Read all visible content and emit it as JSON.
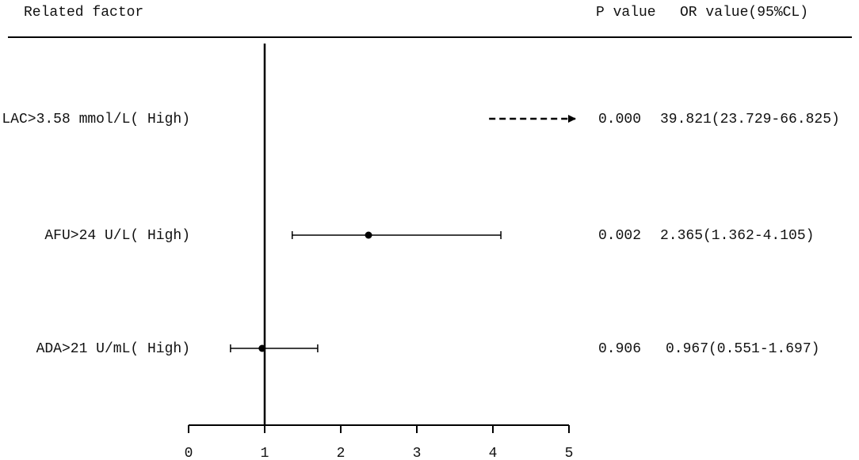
{
  "chart_data": {
    "type": "forest",
    "headers": {
      "factor": "Related factor",
      "p": "P value",
      "or": "OR value(95%CL)"
    },
    "categories": [
      "LAC>3.58 mmol/L( High)",
      "AFU>24 U/L( High)",
      "ADA>21 U/mL( High)"
    ],
    "values": [
      39.821,
      2.365,
      0.967
    ],
    "lower": [
      23.729,
      1.362,
      0.551
    ],
    "upper": [
      66.825,
      4.105,
      1.697
    ],
    "p_values": [
      "0.000",
      "0.002",
      "0.906"
    ],
    "or_labels": [
      "39.821(23.729-66.825)",
      "2.365(1.362-4.105)",
      "0.967(0.551-1.697)"
    ],
    "reference": 1,
    "xlim": [
      0,
      5
    ],
    "xticks": [
      0,
      1,
      2,
      3,
      4,
      5
    ],
    "color": "#000000"
  }
}
